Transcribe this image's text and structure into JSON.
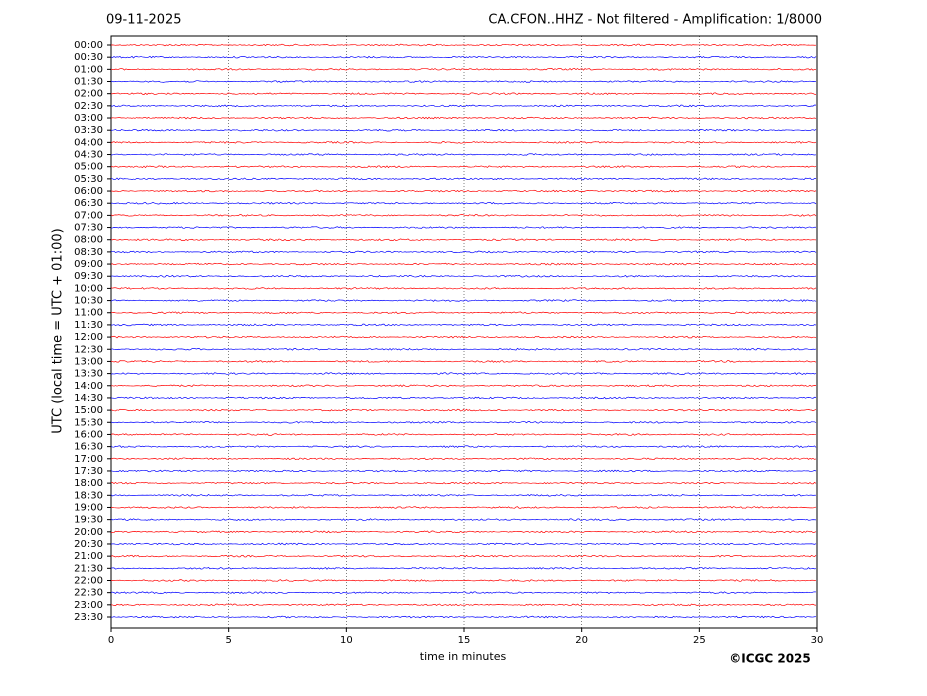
{
  "chart_data": {
    "type": "helicorder",
    "title_left": "09-11-2025",
    "title": "CA.CFON..HHZ - Not filtered - Amplification: 1/8000",
    "y_label": "UTC (local time = UTC + 01:00)",
    "x_label": "time in minutes",
    "credit": "©ICGC 2025",
    "categories": [
      "00:00",
      "00:30",
      "01:00",
      "01:30",
      "02:00",
      "02:30",
      "03:00",
      "03:30",
      "04:00",
      "04:30",
      "05:00",
      "05:30",
      "06:00",
      "06:30",
      "07:00",
      "07:30",
      "08:00",
      "08:30",
      "09:00",
      "09:30",
      "10:00",
      "10:30",
      "11:00",
      "11:30",
      "12:00",
      "12:30",
      "13:00",
      "13:30",
      "14:00",
      "14:30",
      "15:00",
      "15:30",
      "16:00",
      "16:30",
      "17:00",
      "17:30",
      "18:00",
      "18:30",
      "19:00",
      "19:30",
      "20:00",
      "20:30",
      "21:00",
      "21:30",
      "22:00",
      "22:30",
      "23:00",
      "23:30"
    ],
    "colors": [
      "#ff0000",
      "#0000ff"
    ],
    "xlim": [
      0,
      30
    ],
    "xticks": [
      0,
      5,
      10,
      15,
      20,
      25,
      30
    ],
    "grid": true
  }
}
